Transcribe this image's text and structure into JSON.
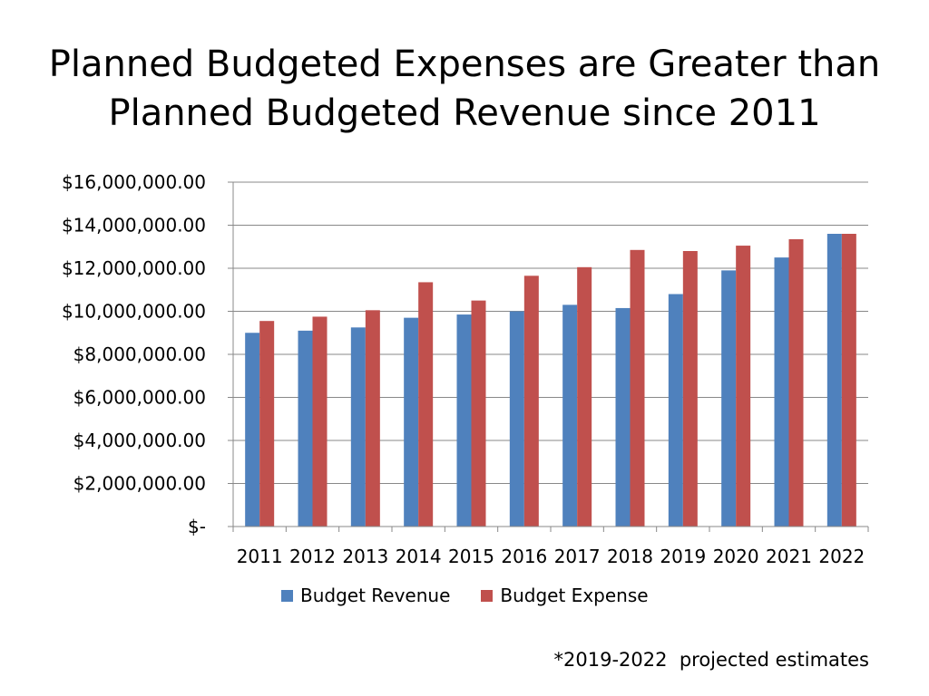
{
  "title_lines": [
    "Planned Budgeted Expenses are Greater than",
    "Planned Budgeted Revenue since 2011"
  ],
  "footnote": "*2019-2022  projected estimates",
  "colors": {
    "revenue": "#4F81BD",
    "expense": "#C0504D",
    "gridline": "#888888",
    "axis": "#888888"
  },
  "chart_data": {
    "type": "bar",
    "title": "Planned Budgeted Expenses are Greater than Planned Budgeted Revenue since 2011",
    "xlabel": "",
    "ylabel": "",
    "categories": [
      "2011",
      "2012",
      "2013",
      "2014",
      "2015",
      "2016",
      "2017",
      "2018",
      "2019",
      "2020",
      "2021",
      "2022"
    ],
    "series": [
      {
        "name": "Budget Revenue",
        "color": "#4F81BD",
        "values": [
          9000000,
          9100000,
          9250000,
          9700000,
          9850000,
          10000000,
          10300000,
          10150000,
          10800000,
          11900000,
          12500000,
          13600000
        ]
      },
      {
        "name": "Budget Expense",
        "color": "#C0504D",
        "values": [
          9550000,
          9750000,
          10050000,
          11350000,
          10500000,
          11650000,
          12050000,
          12850000,
          12800000,
          13050000,
          13350000,
          13600000
        ]
      }
    ],
    "ylim": [
      0,
      16000000
    ],
    "yticks": [
      0,
      2000000,
      4000000,
      6000000,
      8000000,
      10000000,
      12000000,
      14000000,
      16000000
    ],
    "ytick_labels": [
      "$-",
      "$2,000,000.00",
      "$4,000,000.00",
      "$6,000,000.00",
      "$8,000,000.00",
      "$10,000,000.00",
      "$12,000,000.00",
      "$14,000,000.00",
      "$16,000,000.00"
    ],
    "grid": true,
    "legend_position": "bottom-center"
  }
}
